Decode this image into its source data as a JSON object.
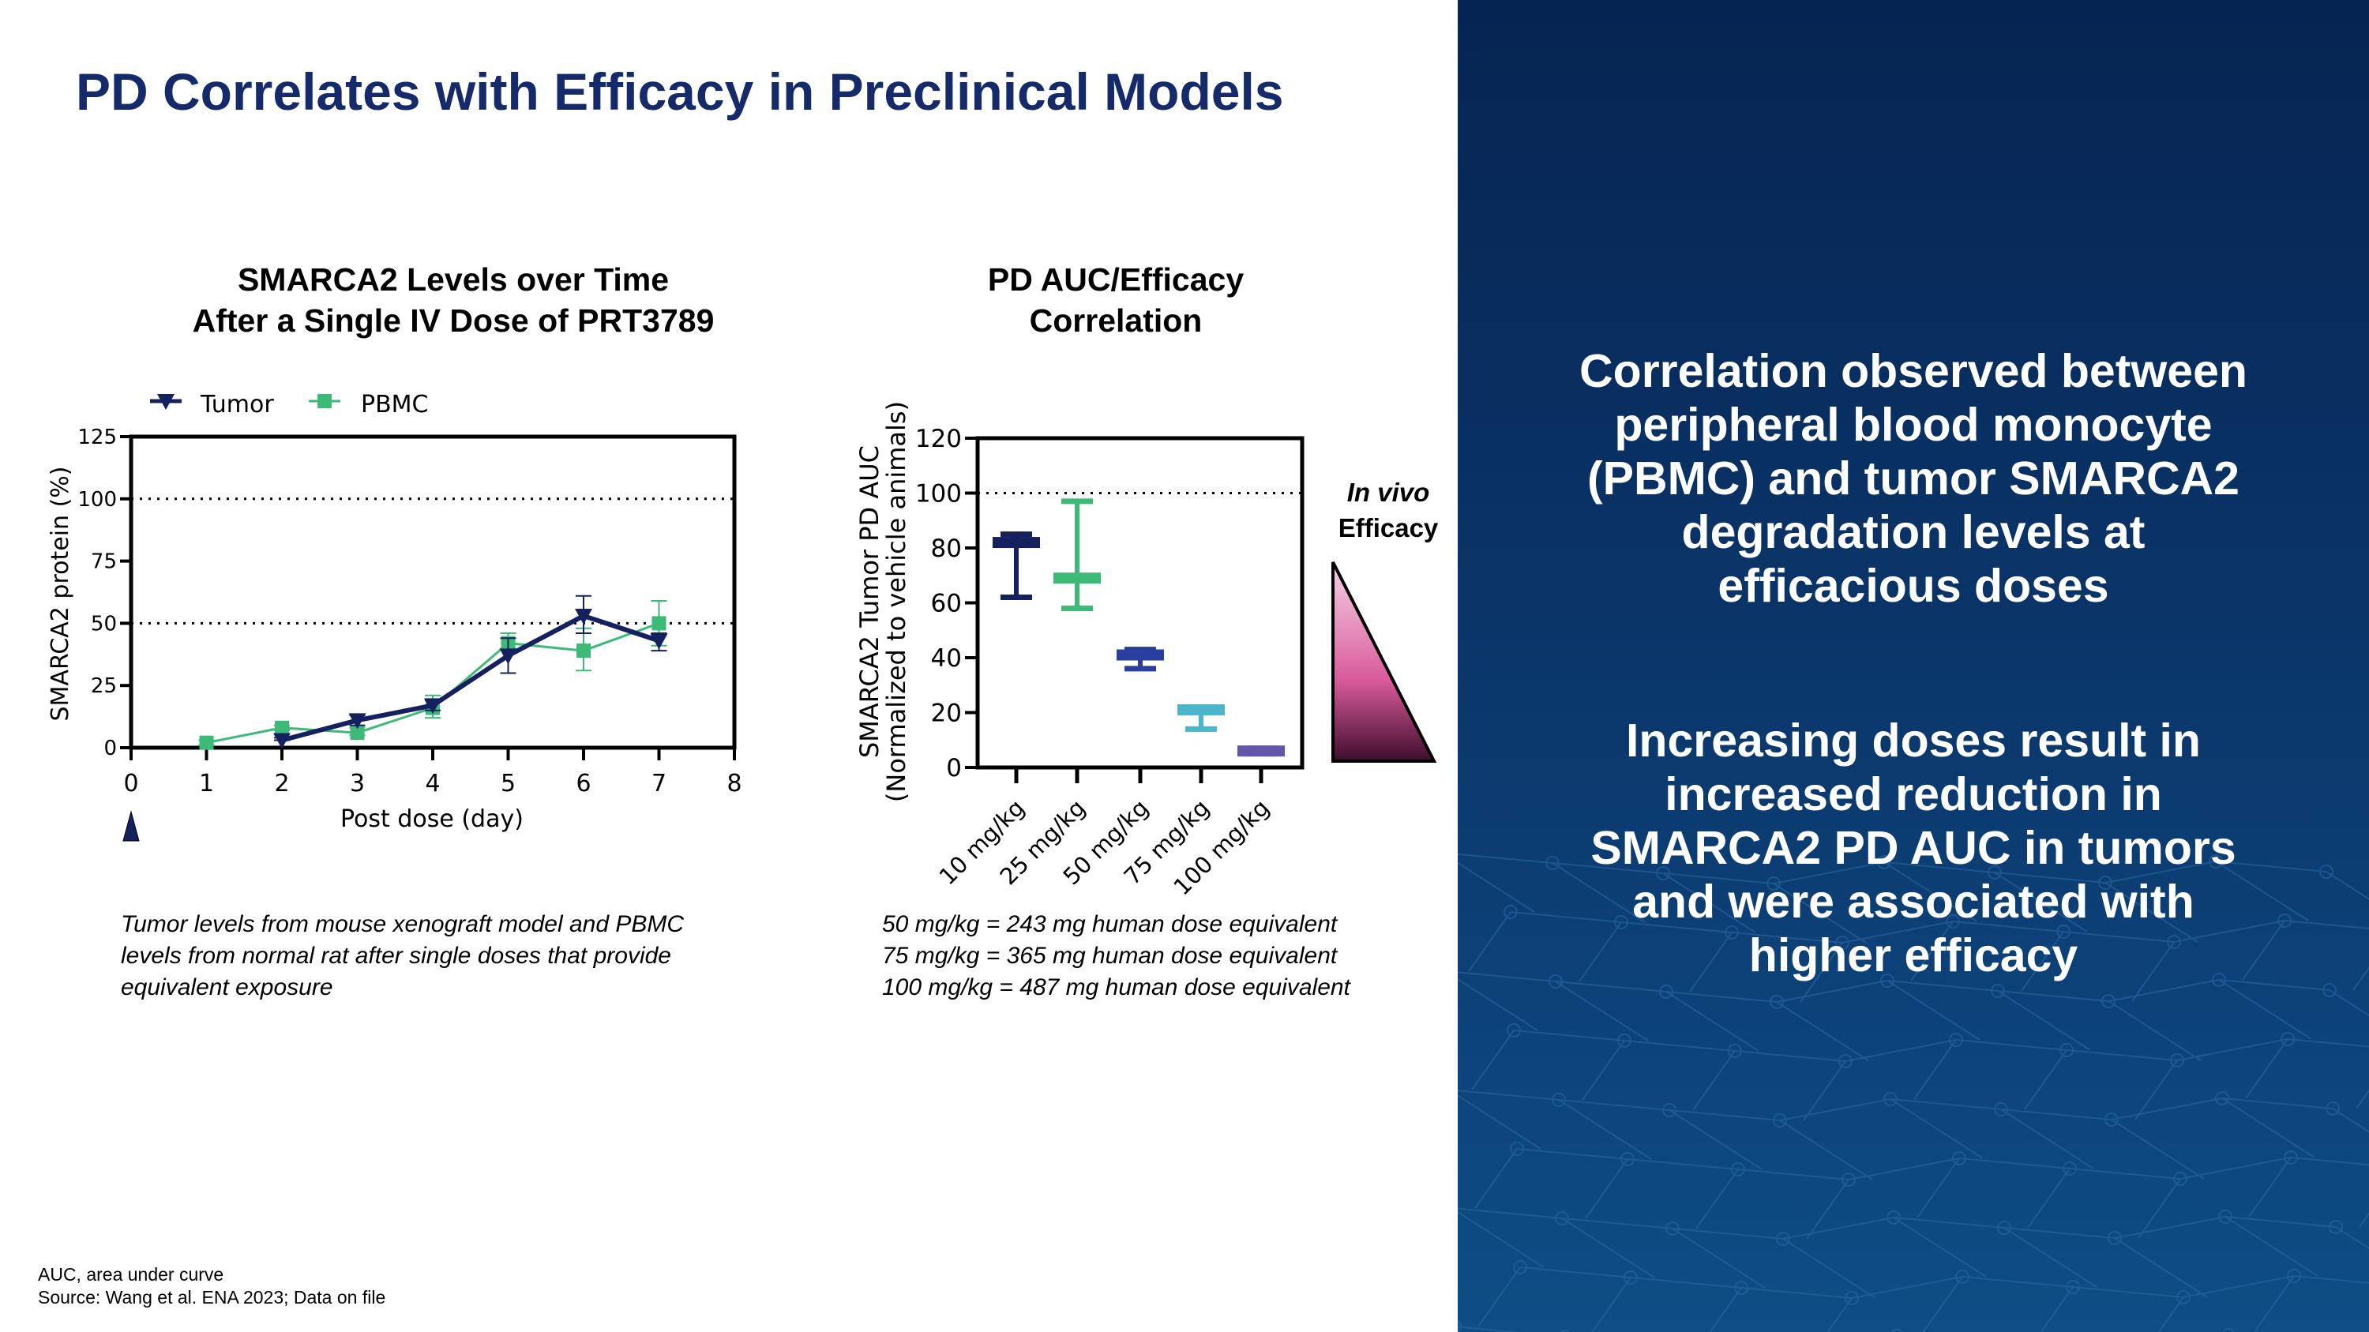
{
  "title": "PD Correlates with Efficacy in Preclinical Models",
  "right_panel": {
    "paragraph1": [
      "Correlation observed between",
      "peripheral blood monocyte",
      "(PBMC) and tumor SMARCA2",
      "degradation levels at",
      "efficacious doses"
    ],
    "paragraph2": [
      "Increasing doses result in",
      "increased reduction in",
      "SMARCA2 PD AUC in tumors",
      "and were associated with",
      "higher efficacy"
    ],
    "background_color": "#0a3468"
  },
  "left_notes": [
    "Tumor levels from mouse xenograft model and PBMC",
    "levels from normal rat after single doses that provide",
    "equivalent exposure"
  ],
  "right_notes": [
    "50 mg/kg = 243 mg human dose equivalent",
    "75 mg/kg = 365 mg human dose equivalent",
    "100 mg/kg = 487 mg human dose equivalent"
  ],
  "footnotes": [
    "AUC, area under curve",
    "Source: Wang et al. ENA 2023; Data on file"
  ],
  "efficacy_label": {
    "line1": "In vivo",
    "line2": "Efficacy"
  },
  "chart_data": [
    {
      "type": "line",
      "title": [
        "SMARCA2 Levels over Time",
        "After a Single IV Dose of PRT3789"
      ],
      "xlabel": "Post dose (day)",
      "ylabel": "SMARCA2 protein (%)",
      "xlim": [
        0,
        8
      ],
      "ylim": [
        0,
        125
      ],
      "xticks": [
        "0",
        "1",
        "2",
        "3",
        "4",
        "5",
        "6",
        "7",
        "8"
      ],
      "yticks": [
        "0",
        "25",
        "50",
        "75",
        "100",
        "125"
      ],
      "reference_lines": [
        50,
        100
      ],
      "dose_marker_day": 0,
      "legend_position": "top-left",
      "series": [
        {
          "name": "Tumor",
          "color": "#14215e",
          "marker": "triangle-down",
          "x": [
            2,
            3,
            4,
            5,
            6,
            7
          ],
          "y": [
            3,
            11,
            17,
            37,
            53,
            43
          ],
          "err_low": [
            3,
            9,
            15,
            30,
            46,
            39
          ],
          "err_high": [
            4,
            13,
            19,
            44,
            61,
            46
          ]
        },
        {
          "name": "PBMC",
          "color": "#3dba78",
          "marker": "square",
          "x": [
            1,
            2,
            3,
            4,
            5,
            6,
            7
          ],
          "y": [
            2,
            8,
            6,
            16,
            42,
            39,
            50
          ],
          "err_low": [
            1,
            7,
            5,
            12,
            40,
            31,
            41
          ],
          "err_high": [
            3,
            9,
            8,
            21,
            46,
            48,
            59
          ]
        }
      ]
    },
    {
      "type": "bar",
      "title": [
        "PD AUC/Efficacy",
        "Correlation"
      ],
      "ylabel": [
        "SMARCA2 Tumor PD AUC",
        "(Normalized to vehicle animals)"
      ],
      "ylim": [
        0,
        120
      ],
      "yticks": [
        "0",
        "20",
        "40",
        "60",
        "80",
        "100",
        "120"
      ],
      "reference_lines": [
        100
      ],
      "categories": [
        "10 mg/kg",
        "25 mg/kg",
        "50 mg/kg",
        "75 mg/kg",
        "100 mg/kg"
      ],
      "values": [
        82,
        69,
        41,
        21,
        6
      ],
      "err_low": [
        62,
        58,
        36,
        14,
        5
      ],
      "err_high": [
        85,
        97,
        43,
        22,
        7
      ],
      "colors": [
        "#14215e",
        "#3dba78",
        "#2a3e9e",
        "#4bb5cc",
        "#6355a8"
      ]
    }
  ]
}
